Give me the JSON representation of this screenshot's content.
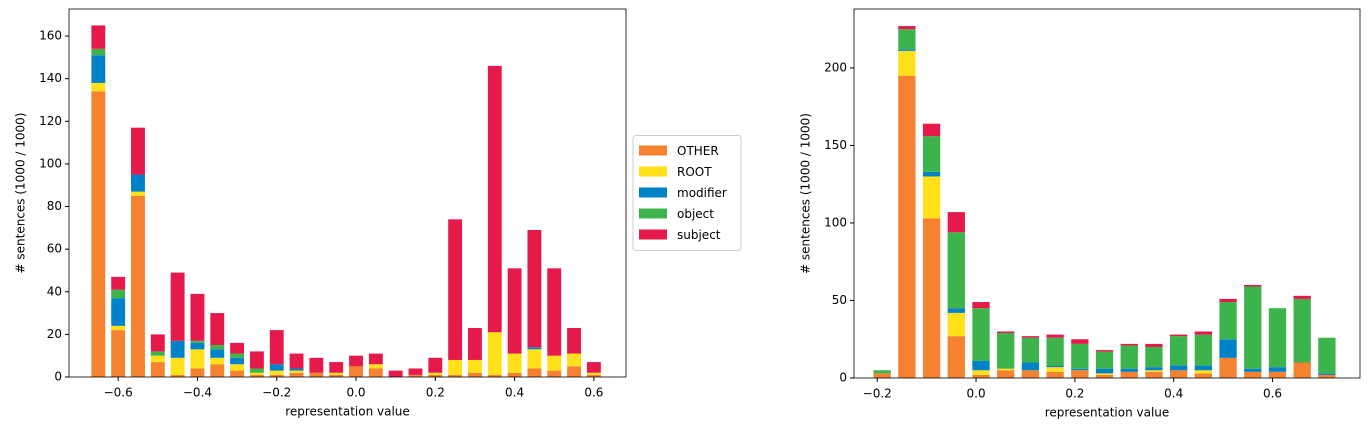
{
  "chart_data": [
    {
      "type": "bar",
      "stacked": true,
      "legend": "outside right",
      "xlabel": "representation value",
      "ylabel": "# sentences (1000 / 1000)",
      "x": [
        -0.65,
        -0.6,
        -0.55,
        -0.5,
        -0.45,
        -0.4,
        -0.35,
        -0.3,
        -0.25,
        -0.2,
        -0.15,
        -0.1,
        -0.05,
        0.0,
        0.05,
        0.1,
        0.15,
        0.2,
        0.25,
        0.3,
        0.35,
        0.4,
        0.45,
        0.5,
        0.55,
        0.6
      ],
      "series": [
        {
          "name": "OTHER",
          "color": "#f58231",
          "values": [
            134,
            22,
            85,
            7,
            1,
            4,
            6,
            3,
            1,
            1,
            2,
            2,
            1,
            5,
            4,
            0,
            1,
            1,
            1,
            2,
            1,
            2,
            4,
            3,
            5,
            1
          ]
        },
        {
          "name": "ROOT",
          "color": "#ffe119",
          "values": [
            4,
            2,
            2,
            3,
            8,
            9,
            3,
            3,
            1,
            2,
            1,
            0,
            1,
            0,
            2,
            0,
            0,
            1,
            7,
            6,
            20,
            9,
            9,
            7,
            6,
            1
          ]
        },
        {
          "name": "modifier",
          "color": "#0082c8",
          "values": [
            13,
            13,
            8,
            0,
            8,
            3,
            4,
            3,
            0,
            3,
            1,
            0,
            0,
            0,
            0,
            0,
            0,
            0,
            0,
            0,
            0,
            0,
            1,
            0,
            0,
            0
          ]
        },
        {
          "name": "object",
          "color": "#3cb44b",
          "values": [
            3,
            4,
            0,
            2,
            0,
            1,
            2,
            2,
            2,
            0,
            0,
            0,
            0,
            0,
            0,
            0,
            0,
            0,
            0,
            0,
            0,
            0,
            0,
            0,
            0,
            0
          ]
        },
        {
          "name": "subject",
          "color": "#e6194b",
          "values": [
            11,
            6,
            22,
            8,
            32,
            22,
            15,
            5,
            8,
            16,
            7,
            7,
            5,
            5,
            5,
            3,
            3,
            7,
            66,
            15,
            125,
            40,
            55,
            41,
            12,
            5
          ]
        }
      ],
      "xlim": [
        -0.724,
        0.681
      ],
      "ylim": [
        0,
        172.7
      ],
      "xticks": [
        {
          "value": -0.6,
          "label": "−0.6"
        },
        {
          "value": -0.4,
          "label": "−0.4"
        },
        {
          "value": -0.2,
          "label": "−0.2"
        },
        {
          "value": 0,
          "label": "0.0"
        },
        0.2,
        0.4,
        0.6
      ],
      "yticks": [
        0,
        20,
        40,
        60,
        80,
        100,
        120,
        140,
        160
      ]
    },
    {
      "type": "bar",
      "stacked": true,
      "xlabel": "representation value",
      "ylabel": "# sentences (1000 / 1000)",
      "x": [
        -0.19,
        -0.14,
        -0.09,
        -0.04,
        0.01,
        0.06,
        0.11,
        0.16,
        0.21,
        0.26,
        0.31,
        0.36,
        0.41,
        0.46,
        0.51,
        0.56,
        0.61,
        0.66,
        0.71
      ],
      "series": [
        {
          "name": "OTHER",
          "color": "#f58231",
          "values": [
            3,
            195,
            103,
            27,
            2,
            5,
            5,
            4,
            5,
            2,
            4,
            4,
            5,
            3,
            13,
            4,
            4,
            10,
            2
          ]
        },
        {
          "name": "ROOT",
          "color": "#ffe119",
          "values": [
            0,
            16,
            27,
            15,
            3,
            1,
            0,
            3,
            0,
            1,
            0,
            1,
            0,
            2,
            0,
            0,
            0,
            0,
            0
          ]
        },
        {
          "name": "modifier",
          "color": "#0082c8",
          "values": [
            0,
            1,
            3,
            3,
            6,
            0,
            5,
            1,
            1,
            3,
            2,
            2,
            3,
            3,
            12,
            2,
            3,
            0,
            1
          ]
        },
        {
          "name": "object",
          "color": "#3cb44b",
          "values": [
            2,
            13,
            23,
            49,
            34,
            23,
            16,
            18,
            16,
            11,
            15,
            13,
            19,
            20,
            24,
            53,
            38,
            41,
            23
          ]
        },
        {
          "name": "subject",
          "color": "#e6194b",
          "values": [
            0,
            2,
            8,
            13,
            4,
            1,
            1,
            2,
            3,
            1,
            1,
            2,
            1,
            2,
            2,
            1,
            0,
            2,
            0
          ]
        }
      ],
      "xlim": [
        -0.247,
        0.777
      ],
      "ylim": [
        0,
        238
      ],
      "xticks": [
        {
          "value": -0.2,
          "label": "−0.2"
        },
        {
          "value": 0,
          "label": "0.0"
        },
        0.2,
        0.4,
        0.6
      ],
      "yticks": [
        0,
        50,
        100,
        150,
        200
      ]
    }
  ]
}
